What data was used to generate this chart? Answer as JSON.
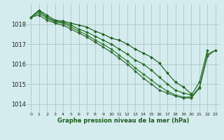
{
  "background_color": "#d4ecee",
  "grid_color": "#b0cccc",
  "line_color_1": "#1a5c1a",
  "line_color_2": "#1e6b1e",
  "line_color_3": "#2a7a2a",
  "line_color_4": "#336633",
  "xlabel": "Graphe pression niveau de la mer (hPa)",
  "ylim": [
    1013.6,
    1019.0
  ],
  "xlim": [
    -0.5,
    23.5
  ],
  "yticks": [
    1014,
    1015,
    1016,
    1017,
    1018
  ],
  "xticks": [
    0,
    1,
    2,
    3,
    4,
    5,
    6,
    7,
    8,
    9,
    10,
    11,
    12,
    13,
    14,
    15,
    16,
    17,
    18,
    19,
    20,
    21,
    22,
    23
  ],
  "series": [
    [
      1018.35,
      1018.7,
      1018.45,
      1018.2,
      1018.15,
      1018.05,
      1017.95,
      1017.85,
      1017.65,
      1017.5,
      1017.3,
      1017.2,
      1017.0,
      1016.75,
      1016.55,
      1016.35,
      1016.05,
      1015.55,
      1015.1,
      1014.85,
      1014.5,
      null,
      null,
      null
    ],
    [
      1018.35,
      1018.65,
      1018.35,
      1018.15,
      1018.1,
      1017.95,
      1017.75,
      1017.6,
      1017.4,
      1017.2,
      1017.0,
      1016.75,
      1016.5,
      1016.2,
      1016.0,
      1015.7,
      1015.35,
      1015.0,
      1014.7,
      1014.55,
      1014.45,
      1015.1,
      1016.7,
      null
    ],
    [
      1018.35,
      1018.55,
      1018.3,
      1018.1,
      1018.05,
      1017.85,
      1017.65,
      1017.45,
      1017.2,
      1017.0,
      1016.75,
      1016.45,
      1016.15,
      1015.8,
      1015.5,
      1015.2,
      1014.9,
      1014.65,
      1014.45,
      1014.35,
      1014.35,
      1014.85,
      1016.5,
      1016.7
    ],
    [
      1018.35,
      1018.45,
      1018.2,
      1018.05,
      1017.95,
      1017.75,
      1017.55,
      1017.35,
      1017.1,
      1016.85,
      1016.6,
      1016.3,
      1016.0,
      1015.65,
      1015.3,
      1015.0,
      1014.7,
      1014.55,
      1014.4,
      1014.3,
      1014.3,
      1014.8,
      1016.4,
      1016.7
    ]
  ]
}
